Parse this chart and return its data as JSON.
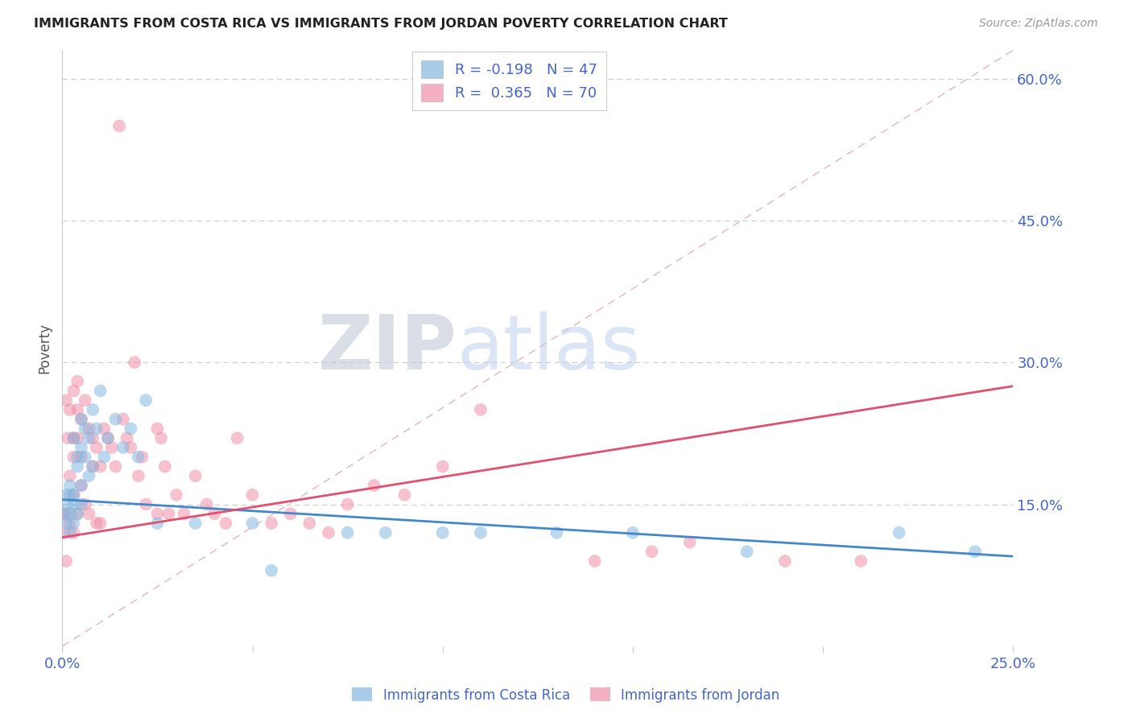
{
  "title": "IMMIGRANTS FROM COSTA RICA VS IMMIGRANTS FROM JORDAN POVERTY CORRELATION CHART",
  "source": "Source: ZipAtlas.com",
  "ylabel": "Poverty",
  "xlim": [
    0.0,
    0.25
  ],
  "ylim": [
    0.0,
    0.63
  ],
  "right_yticks": [
    0.0,
    0.15,
    0.3,
    0.45,
    0.6
  ],
  "right_yticklabels": [
    "",
    "15.0%",
    "30.0%",
    "45.0%",
    "60.0%"
  ],
  "legend_bottom_labels": [
    "Immigrants from Costa Rica",
    "Immigrants from Jordan"
  ],
  "watermark_zip": "ZIP",
  "watermark_atlas": "atlas",
  "cr_color": "#85b8e0",
  "jd_color": "#f090a8",
  "cr_line_color": "#4488cc",
  "jd_line_color": "#e05070",
  "diag_color": "#ddaaaa",
  "title_color": "#222222",
  "source_color": "#999999",
  "axis_label_color": "#4466cc",
  "grid_color": "#cccccc",
  "background_color": "#ffffff",
  "cr_line_x0": 0.0,
  "cr_line_y0": 0.155,
  "cr_line_x1": 0.25,
  "cr_line_y1": 0.095,
  "jd_line_x0": 0.0,
  "jd_line_y0": 0.115,
  "jd_line_x1": 0.25,
  "jd_line_y1": 0.275,
  "cr_x": [
    0.0005,
    0.001,
    0.001,
    0.0015,
    0.002,
    0.002,
    0.002,
    0.002,
    0.003,
    0.003,
    0.003,
    0.003,
    0.004,
    0.004,
    0.004,
    0.005,
    0.005,
    0.005,
    0.005,
    0.006,
    0.006,
    0.007,
    0.007,
    0.008,
    0.008,
    0.009,
    0.01,
    0.011,
    0.012,
    0.014,
    0.016,
    0.018,
    0.02,
    0.022,
    0.025,
    0.035,
    0.05,
    0.055,
    0.075,
    0.085,
    0.1,
    0.11,
    0.13,
    0.15,
    0.18,
    0.22,
    0.24
  ],
  "cr_y": [
    0.14,
    0.16,
    0.13,
    0.15,
    0.14,
    0.16,
    0.12,
    0.17,
    0.15,
    0.13,
    0.22,
    0.16,
    0.2,
    0.19,
    0.14,
    0.17,
    0.24,
    0.15,
    0.21,
    0.2,
    0.23,
    0.18,
    0.22,
    0.25,
    0.19,
    0.23,
    0.27,
    0.2,
    0.22,
    0.24,
    0.21,
    0.23,
    0.2,
    0.26,
    0.13,
    0.13,
    0.13,
    0.08,
    0.12,
    0.12,
    0.12,
    0.12,
    0.12,
    0.12,
    0.1,
    0.12,
    0.1
  ],
  "jd_x": [
    0.0003,
    0.0005,
    0.001,
    0.001,
    0.001,
    0.0015,
    0.002,
    0.002,
    0.002,
    0.003,
    0.003,
    0.003,
    0.003,
    0.003,
    0.004,
    0.004,
    0.004,
    0.004,
    0.005,
    0.005,
    0.005,
    0.006,
    0.006,
    0.007,
    0.007,
    0.008,
    0.008,
    0.009,
    0.009,
    0.01,
    0.01,
    0.011,
    0.012,
    0.013,
    0.014,
    0.015,
    0.016,
    0.017,
    0.018,
    0.019,
    0.02,
    0.021,
    0.022,
    0.025,
    0.025,
    0.026,
    0.027,
    0.028,
    0.03,
    0.032,
    0.035,
    0.038,
    0.04,
    0.043,
    0.046,
    0.05,
    0.055,
    0.06,
    0.065,
    0.07,
    0.075,
    0.082,
    0.09,
    0.1,
    0.11,
    0.14,
    0.155,
    0.165,
    0.19,
    0.21
  ],
  "jd_y": [
    0.14,
    0.12,
    0.26,
    0.14,
    0.09,
    0.22,
    0.25,
    0.18,
    0.13,
    0.27,
    0.22,
    0.2,
    0.16,
    0.12,
    0.28,
    0.25,
    0.22,
    0.14,
    0.24,
    0.2,
    0.17,
    0.26,
    0.15,
    0.23,
    0.14,
    0.22,
    0.19,
    0.21,
    0.13,
    0.19,
    0.13,
    0.23,
    0.22,
    0.21,
    0.19,
    0.55,
    0.24,
    0.22,
    0.21,
    0.3,
    0.18,
    0.2,
    0.15,
    0.23,
    0.14,
    0.22,
    0.19,
    0.14,
    0.16,
    0.14,
    0.18,
    0.15,
    0.14,
    0.13,
    0.22,
    0.16,
    0.13,
    0.14,
    0.13,
    0.12,
    0.15,
    0.17,
    0.16,
    0.19,
    0.25,
    0.09,
    0.1,
    0.11,
    0.09,
    0.09
  ]
}
